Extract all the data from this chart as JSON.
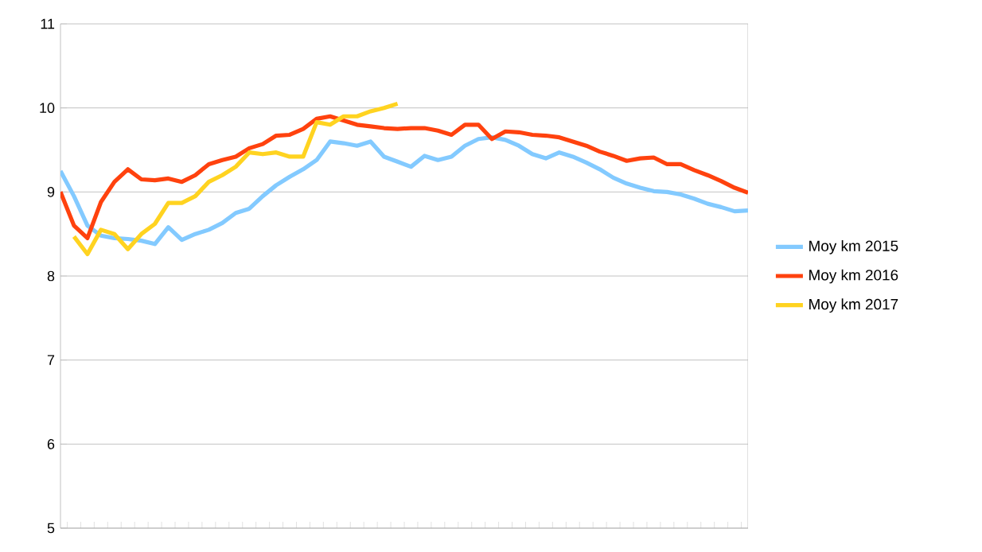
{
  "chart_data": {
    "type": "line",
    "categories": [
      null,
      null,
      null,
      null,
      null,
      null,
      null,
      null,
      null,
      null,
      null,
      null,
      null,
      null,
      null,
      null,
      null,
      null,
      null,
      null,
      null,
      null,
      null,
      null,
      null,
      null,
      null,
      null,
      null,
      null,
      null,
      null,
      null,
      null,
      null,
      null,
      null,
      null,
      null,
      null,
      null,
      null,
      null,
      null,
      null,
      null,
      null,
      null,
      null,
      null,
      null,
      null
    ],
    "series": [
      {
        "name": "Moy km 2015",
        "color": "#83caff",
        "values": [
          9.25,
          8.95,
          8.6,
          8.48,
          8.45,
          8.44,
          8.42,
          8.38,
          8.58,
          8.43,
          8.5,
          8.55,
          8.63,
          8.75,
          8.8,
          8.95,
          9.08,
          9.18,
          9.27,
          9.38,
          9.6,
          9.58,
          9.55,
          9.6,
          9.42,
          9.36,
          9.3,
          9.43,
          9.38,
          9.42,
          9.55,
          9.63,
          9.65,
          9.62,
          9.55,
          9.45,
          9.4,
          9.47,
          9.42,
          9.35,
          9.27,
          9.17,
          9.1,
          9.05,
          9.01,
          9.0,
          8.97,
          8.92,
          8.86,
          8.82,
          8.77,
          8.78
        ]
      },
      {
        "name": "Moy km 2016",
        "color": "#ff420e",
        "values": [
          9.0,
          8.6,
          8.45,
          8.88,
          9.12,
          9.27,
          9.15,
          9.14,
          9.16,
          9.12,
          9.2,
          9.33,
          9.38,
          9.42,
          9.52,
          9.57,
          9.67,
          9.68,
          9.75,
          9.87,
          9.9,
          9.85,
          9.8,
          9.78,
          9.76,
          9.75,
          9.76,
          9.76,
          9.73,
          9.68,
          9.8,
          9.8,
          9.63,
          9.72,
          9.71,
          9.68,
          9.67,
          9.65,
          9.6,
          9.55,
          9.48,
          9.43,
          9.37,
          9.4,
          9.41,
          9.33,
          9.33,
          9.26,
          9.2,
          9.13,
          9.05,
          8.99
        ]
      },
      {
        "name": "Moy km 2017",
        "color": "#ffd320",
        "values": [
          null,
          8.47,
          8.26,
          8.55,
          8.5,
          8.32,
          8.5,
          8.62,
          8.87,
          8.87,
          8.95,
          9.12,
          9.2,
          9.3,
          9.47,
          9.45,
          9.47,
          9.42,
          9.42,
          9.83,
          9.8,
          9.9,
          9.9,
          9.96,
          10.0,
          10.05,
          null,
          null,
          null,
          null,
          null,
          null,
          null,
          null,
          null,
          null,
          null,
          null,
          null,
          null,
          null,
          null,
          null,
          null,
          null,
          null,
          null,
          null,
          null,
          null,
          null,
          null
        ]
      }
    ],
    "ylim": [
      5,
      11
    ],
    "yticks": [
      5,
      6,
      7,
      8,
      9,
      10,
      11
    ],
    "grid": "y",
    "legend": "right",
    "marker": "none",
    "line_style": "solid"
  }
}
